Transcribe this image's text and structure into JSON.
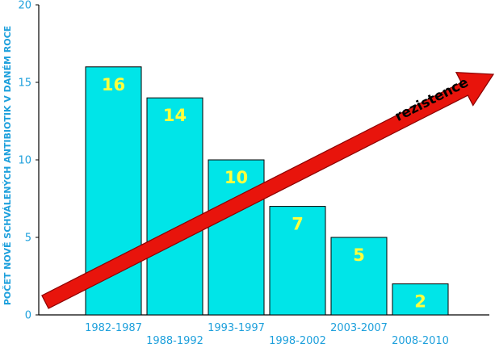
{
  "chart_data": {
    "type": "bar",
    "categories": [
      "1982-1987",
      "1988-1992",
      "1993-1997",
      "1998-2002",
      "2003-2007",
      "2008-2010"
    ],
    "values": [
      16,
      14,
      10,
      7,
      5,
      2
    ],
    "ylabel": "POČET NOVĚ SCHVÁLENÝCH ANTIBIOTIK V DANÉM ROCE",
    "xlabel": "",
    "title": "",
    "ylim": [
      0,
      20
    ],
    "yticks": [
      0,
      5,
      10,
      15,
      20
    ],
    "grid": false,
    "annotation": {
      "text": "rezistence",
      "shape": "arrow",
      "direction": "rising, lower-left to upper-right"
    }
  },
  "colors": {
    "bar": "#00e5e8",
    "bar_outline": "#000000",
    "axis_text": "#1ea0dc",
    "value_text": "#ffff3c",
    "arrow": "#e8140c",
    "arrow_outline": "#8a0000",
    "arrow_text": "#000000"
  }
}
